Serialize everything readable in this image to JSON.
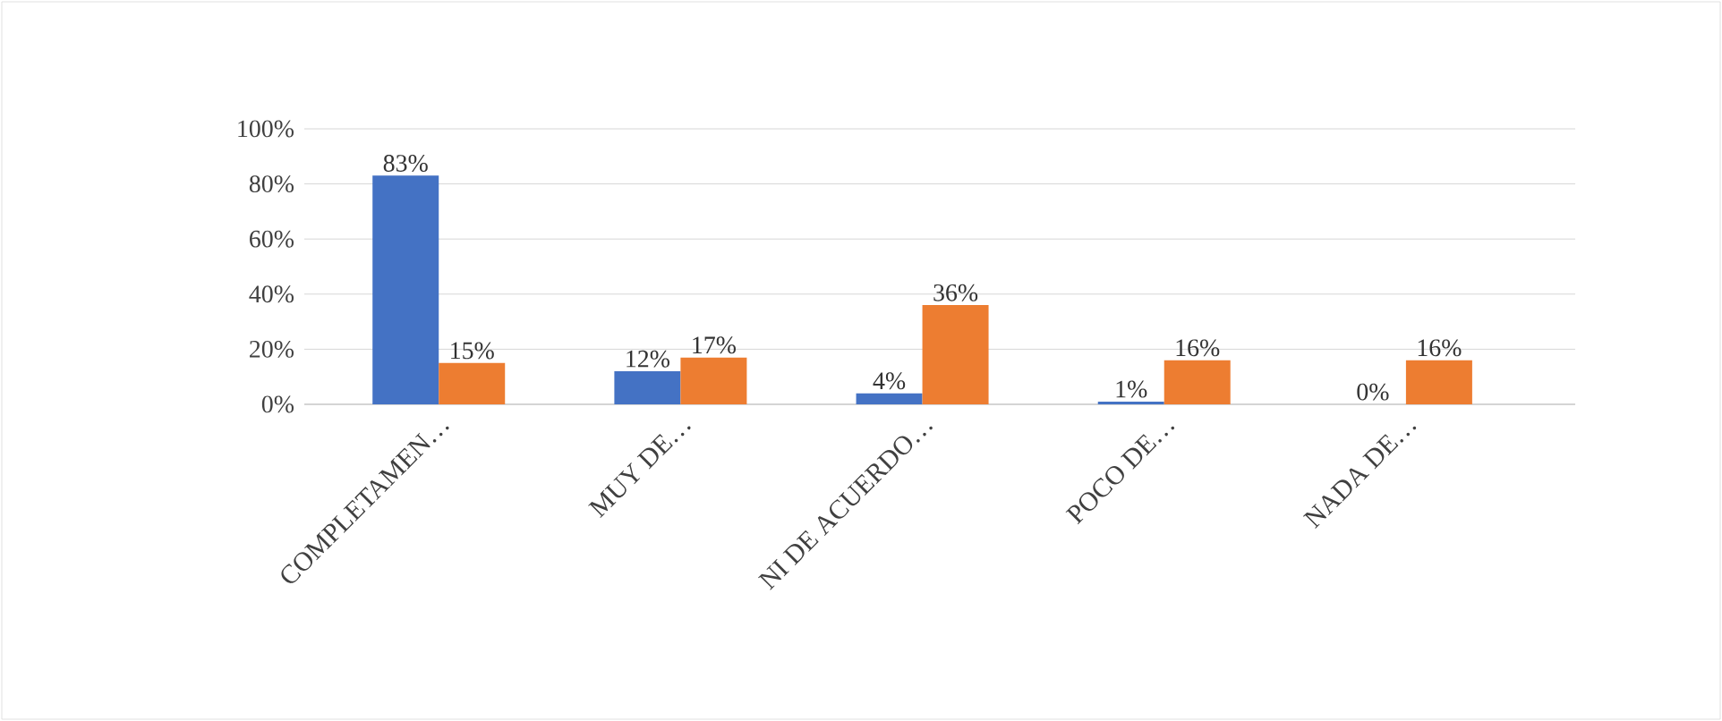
{
  "chart_data": {
    "type": "bar",
    "categories": [
      "COMPLETAMEN…",
      "MUY DE…",
      "NI DE ACUERDO…",
      "POCO DE…",
      "NADA DE…"
    ],
    "series": [
      {
        "color": "#4472c4",
        "values": [
          83,
          12,
          4,
          1,
          0
        ],
        "value_labels": [
          "83%",
          "12%",
          "4%",
          "1%",
          "0%"
        ]
      },
      {
        "color": "#ed7d31",
        "values": [
          15,
          17,
          36,
          16,
          16
        ],
        "value_labels": [
          "15%",
          "17%",
          "36%",
          "16%",
          "16%"
        ]
      }
    ],
    "ylim": [
      0,
      100
    ],
    "yticks": [
      {
        "value": 0,
        "label": "0%"
      },
      {
        "value": 20,
        "label": "20%"
      },
      {
        "value": 40,
        "label": "40%"
      },
      {
        "value": 60,
        "label": "60%"
      },
      {
        "value": 80,
        "label": "80%"
      },
      {
        "value": 100,
        "label": "100%"
      }
    ],
    "grid": "y"
  }
}
